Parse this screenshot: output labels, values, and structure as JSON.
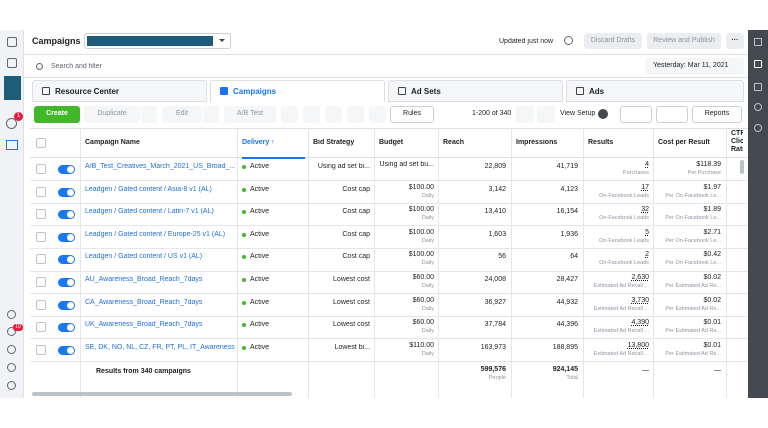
{
  "header": {
    "title": "Campaigns",
    "updated": "Updated just now",
    "discard": "Discard Drafts",
    "publish": "Review and Publish",
    "more": "···"
  },
  "rail": {
    "badges": [
      "1",
      "10"
    ]
  },
  "search": {
    "placeholder": "Search and filter",
    "date": "Yesterday: Mar 11, 2021"
  },
  "tabs": [
    "Resource Center",
    "Campaigns",
    "Ad Sets",
    "Ads"
  ],
  "toolbar": {
    "create": "Create",
    "duplicate": "Duplicate",
    "edit": "Edit",
    "ab_test": "A/B Test",
    "rules": "Rules",
    "pager": "1-200 of 340",
    "view_setup": "View Setup",
    "reports": "Reports"
  },
  "table": {
    "columns": [
      "Campaign Name",
      "Delivery ↑",
      "Bid Strategy",
      "Budget",
      "Reach",
      "Impressions",
      "Results",
      "Cost per Result",
      "CTR Click Rate"
    ],
    "rows": [
      {
        "name": "A/B_Test_Creatives_March_2021_US_Broad_...",
        "delivery": "Active",
        "bid": "Using ad set bi...",
        "budget": "Using ad set bu...",
        "period": null,
        "reach": "22,809",
        "impressions": "41,719",
        "results": "4",
        "results_label": "Purchases",
        "cost": "$118.39",
        "cost_label": "Per Purchase"
      },
      {
        "name": "Leadgen / Gated content / Asia-8 v1 (AL)",
        "delivery": "Active",
        "bid": "Cost cap",
        "budget": "$100.00",
        "period": "Daily",
        "reach": "3,142",
        "impressions": "4,123",
        "results": "17",
        "results_label": "On-Facebook Leads",
        "cost": "$1.97",
        "cost_label": "Per On-Facebook Le..."
      },
      {
        "name": "Leadgen / Gated content / Latin-7 v1 (AL)",
        "delivery": "Active",
        "bid": "Cost cap",
        "budget": "$100.00",
        "period": "Daily",
        "reach": "13,410",
        "impressions": "16,154",
        "results": "32",
        "results_label": "On-Facebook Leads",
        "cost": "$1.89",
        "cost_label": "Per On-Facebook Le..."
      },
      {
        "name": "Leadgen / Gated content / Europe-25 v1 (AL)",
        "delivery": "Active",
        "bid": "Cost cap",
        "budget": "$100.00",
        "period": "Daily",
        "reach": "1,603",
        "impressions": "1,936",
        "results": "5",
        "results_label": "On-Facebook Leads",
        "cost": "$2.71",
        "cost_label": "Per On-Facebook Le..."
      },
      {
        "name": "Leadgen / Gated content / US v1 (AL)",
        "delivery": "Active",
        "bid": "Cost cap",
        "budget": "$100.00",
        "period": "Daily",
        "reach": "56",
        "impressions": "64",
        "results": "2",
        "results_label": "On-Facebook Leads",
        "cost": "$0.42",
        "cost_label": "Per On-Facebook Le..."
      },
      {
        "name": "AU_Awareness_Broad_Reach_7days",
        "delivery": "Active",
        "bid": "Lowest cost",
        "budget": "$60.00",
        "period": "Daily",
        "reach": "24,008",
        "impressions": "28,427",
        "results": "2,630",
        "results_label": "Estimated Ad Recall ...",
        "cost": "$0.02",
        "cost_label": "Per Estimated Ad Re..."
      },
      {
        "name": "CA_Awareness_Broad_Reach_7days",
        "delivery": "Active",
        "bid": "Lowest cost",
        "budget": "$60.00",
        "period": "Daily",
        "reach": "36,927",
        "impressions": "44,932",
        "results": "3,730",
        "results_label": "Estimated Ad Recall ...",
        "cost": "$0.02",
        "cost_label": "Per Estimated Ad Re..."
      },
      {
        "name": "UK_Awareness_Broad_Reach_7days",
        "delivery": "Active",
        "bid": "Lowest cost",
        "budget": "$60.00",
        "period": "Daily",
        "reach": "37,784",
        "impressions": "44,396",
        "results": "4,390",
        "results_label": "Estimated Ad Recall ...",
        "cost": "$0.01",
        "cost_label": "Per Estimated Ad Re..."
      },
      {
        "name": "SE, DK, NO, NL, CZ, FR, PT, PL, IT_Awareness_...",
        "delivery": "Active",
        "bid": "Lowest bi...",
        "budget": "$110.00",
        "period": "Daily",
        "reach": "163,973",
        "impressions": "188,895",
        "results": "13,800",
        "results_label": "Estimated Ad Recall ...",
        "cost": "$0.01",
        "cost_label": "Per Estimated Ad Re..."
      }
    ],
    "footer": {
      "label": "Results from 340 campaigns",
      "reach": "599,576",
      "reach_label": "People",
      "impressions": "924,145",
      "impressions_label": "Total",
      "results": "—",
      "cost": "—"
    }
  }
}
